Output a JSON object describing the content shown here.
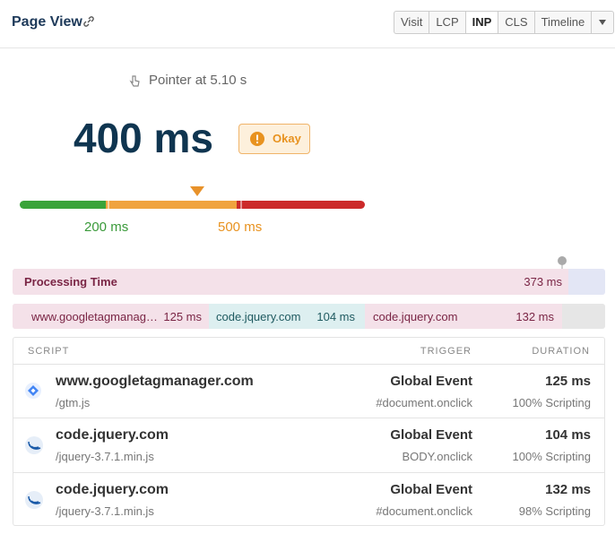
{
  "header": {
    "title": "Page View",
    "tabs": [
      "Visit",
      "LCP",
      "INP",
      "CLS",
      "Timeline"
    ],
    "active_tab": "INP"
  },
  "summary": {
    "event": "Pointer at 5.10 s",
    "value": "400 ms",
    "rating": "Okay",
    "thresholds": [
      "200 ms",
      "500 ms"
    ]
  },
  "timeline": {
    "processing": {
      "label": "Processing Time",
      "value": "373 ms"
    },
    "scripts": [
      {
        "name": "www.googletagmanag…",
        "value": "125 ms"
      },
      {
        "name": "code.jquery.com",
        "value": "104 ms"
      },
      {
        "name": "code.jquery.com",
        "value": "132 ms"
      }
    ]
  },
  "table": {
    "columns": [
      "SCRIPT",
      "TRIGGER",
      "DURATION"
    ],
    "rows": [
      {
        "script": "www.googletagmanager.com",
        "path": "/gtm.js",
        "trigger": "Global Event",
        "trigger_detail": "#document.onclick",
        "duration": "125 ms",
        "breakdown": "100% Scripting"
      },
      {
        "script": "code.jquery.com",
        "path": "/jquery-3.7.1.min.js",
        "trigger": "Global Event",
        "trigger_detail": "BODY.onclick",
        "duration": "104 ms",
        "breakdown": "100% Scripting"
      },
      {
        "script": "code.jquery.com",
        "path": "/jquery-3.7.1.min.js",
        "trigger": "Global Event",
        "trigger_detail": "#document.onclick",
        "duration": "132 ms",
        "breakdown": "98% Scripting"
      }
    ]
  }
}
